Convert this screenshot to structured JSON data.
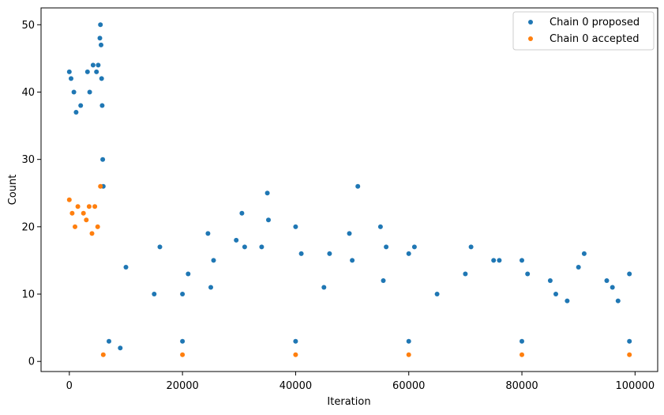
{
  "chart_data": {
    "type": "scatter",
    "xlabel": "Iteration",
    "ylabel": "Count",
    "xlim": [
      -5000,
      104000
    ],
    "ylim": [
      -1.5,
      52.5
    ],
    "x_ticks": [
      0,
      20000,
      40000,
      60000,
      80000,
      100000
    ],
    "y_ticks": [
      0,
      10,
      20,
      30,
      40,
      50
    ],
    "legend_position": "top-right",
    "grid": false,
    "series": [
      {
        "name": "Chain 0 proposed",
        "color": "#1f77b4",
        "points": [
          [
            0,
            43
          ],
          [
            300,
            42
          ],
          [
            800,
            40
          ],
          [
            1200,
            37
          ],
          [
            2000,
            38
          ],
          [
            3200,
            43
          ],
          [
            3600,
            40
          ],
          [
            4200,
            44
          ],
          [
            4800,
            43
          ],
          [
            5100,
            44
          ],
          [
            5400,
            48
          ],
          [
            5500,
            50
          ],
          [
            5600,
            47
          ],
          [
            5700,
            42
          ],
          [
            5800,
            38
          ],
          [
            5900,
            30
          ],
          [
            6000,
            26
          ],
          [
            10000,
            14
          ],
          [
            16000,
            17
          ],
          [
            21000,
            13
          ],
          [
            24500,
            19
          ],
          [
            25500,
            15
          ],
          [
            29500,
            18
          ],
          [
            30500,
            22
          ],
          [
            31000,
            17
          ],
          [
            34000,
            17
          ],
          [
            35000,
            25
          ],
          [
            35200,
            21
          ],
          [
            40000,
            20
          ],
          [
            41000,
            16
          ],
          [
            46000,
            16
          ],
          [
            49500,
            19
          ],
          [
            50000,
            15
          ],
          [
            51000,
            26
          ],
          [
            55000,
            20
          ],
          [
            56000,
            17
          ],
          [
            60000,
            16
          ],
          [
            61000,
            17
          ],
          [
            70000,
            13
          ],
          [
            71000,
            17
          ],
          [
            75000,
            15
          ],
          [
            76000,
            15
          ],
          [
            80000,
            15
          ],
          [
            81000,
            13
          ],
          [
            85000,
            12
          ],
          [
            90000,
            14
          ],
          [
            91000,
            16
          ],
          [
            95000,
            12
          ],
          [
            96000,
            11
          ],
          [
            99000,
            13
          ],
          [
            15000,
            10
          ],
          [
            20000,
            10
          ],
          [
            25000,
            11
          ],
          [
            45000,
            11
          ],
          [
            55500,
            12
          ],
          [
            65000,
            10
          ],
          [
            86000,
            10
          ],
          [
            88000,
            9
          ],
          [
            97000,
            9
          ],
          [
            7000,
            3
          ],
          [
            9000,
            2
          ],
          [
            20000,
            3
          ],
          [
            40000,
            3
          ],
          [
            60000,
            3
          ],
          [
            80000,
            3
          ],
          [
            99000,
            3
          ]
        ]
      },
      {
        "name": "Chain 0 accepted",
        "color": "#ff7f0e",
        "points": [
          [
            0,
            24
          ],
          [
            500,
            22
          ],
          [
            1500,
            23
          ],
          [
            2500,
            22
          ],
          [
            3500,
            23
          ],
          [
            4500,
            23
          ],
          [
            5500,
            26
          ],
          [
            1000,
            20
          ],
          [
            3000,
            21
          ],
          [
            4000,
            19
          ],
          [
            5000,
            20
          ],
          [
            6000,
            1
          ],
          [
            20000,
            1
          ],
          [
            40000,
            1
          ],
          [
            60000,
            1
          ],
          [
            80000,
            1
          ],
          [
            99000,
            1
          ]
        ]
      }
    ]
  }
}
